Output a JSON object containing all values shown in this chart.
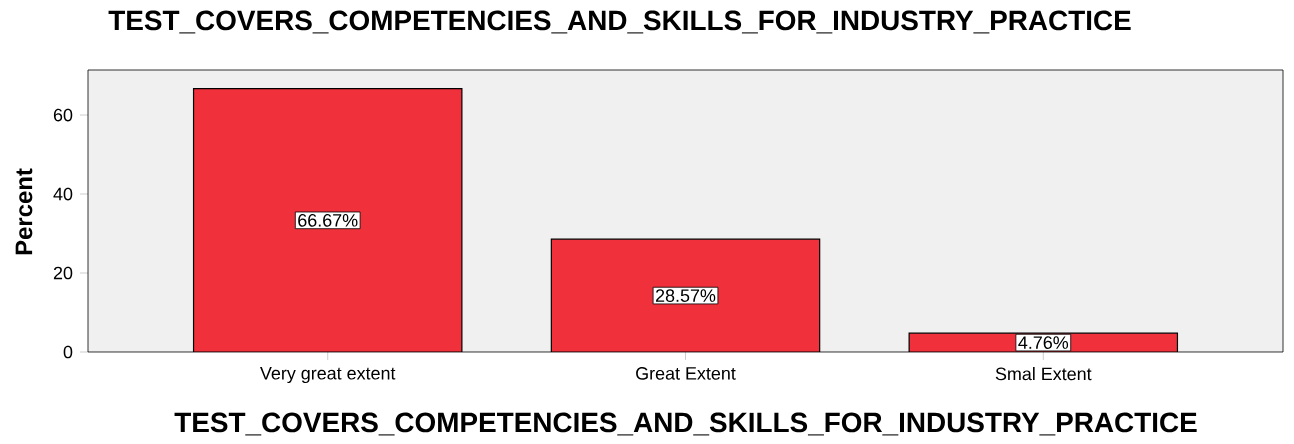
{
  "chart_data": {
    "type": "bar",
    "title": "TEST_COVERS_COMPETENCIES_AND_SKILLS_FOR_INDUSTRY_PRACTICE",
    "xlabel": "TEST_COVERS_COMPETENCIES_AND_SKILLS_FOR_INDUSTRY_PRACTICE",
    "ylabel": "Percent",
    "categories": [
      "Very great extent",
      "Great Extent",
      "Smal Extent"
    ],
    "values": [
      66.67,
      28.57,
      4.76
    ],
    "value_labels": [
      "66.67%",
      "28.57%",
      "4.76%"
    ],
    "color": "#f0313b",
    "ylim": [
      0,
      71.4
    ],
    "yticks": [
      0,
      20,
      40,
      60
    ],
    "grid": false
  }
}
